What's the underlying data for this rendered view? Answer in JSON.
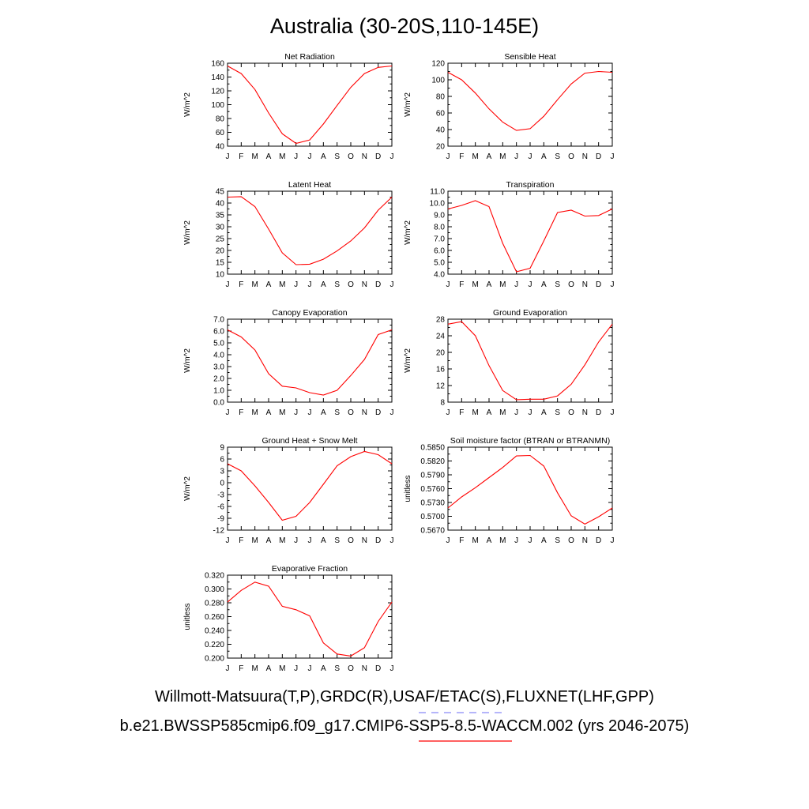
{
  "title": "Australia (30-20S,110-145E)",
  "legend": {
    "obs_label": "Willmott-Matsuura(T,P),GRDC(R),USAF/ETAC(S),FLUXNET(LHF,GPP)",
    "obs_color": "#6b6bf5",
    "model_label": "b.e21.BWSSP585cmip6.f09_g17.CMIP6-SSP5-8.5-WACCM.002 (yrs 2046-2075)",
    "model_color": "#ff0000"
  },
  "series_color": "#ff0000",
  "chart_data": [
    {
      "type": "line",
      "title": "Net Radiation",
      "ylabel": "W/m^2",
      "categories": [
        "J",
        "F",
        "M",
        "A",
        "M",
        "J",
        "J",
        "A",
        "S",
        "O",
        "N",
        "D",
        "J"
      ],
      "values": [
        156,
        145,
        122,
        88,
        58,
        44,
        49,
        72,
        99,
        125,
        145,
        154,
        156
      ],
      "ylim": [
        40,
        160
      ],
      "yticks": [
        "40",
        "60",
        "80",
        "100",
        "120",
        "140",
        "160"
      ]
    },
    {
      "type": "line",
      "title": "Sensible Heat",
      "ylabel": "W/m^2",
      "categories": [
        "J",
        "F",
        "M",
        "A",
        "M",
        "J",
        "J",
        "A",
        "S",
        "O",
        "N",
        "D",
        "J"
      ],
      "values": [
        109,
        100,
        84,
        65,
        49,
        39,
        41,
        56,
        76,
        95,
        108,
        110,
        109
      ],
      "ylim": [
        20,
        120
      ],
      "yticks": [
        "20",
        "40",
        "60",
        "80",
        "100",
        "120"
      ]
    },
    {
      "type": "line",
      "title": "Latent Heat",
      "ylabel": "W/m^2",
      "categories": [
        "J",
        "F",
        "M",
        "A",
        "M",
        "J",
        "J",
        "A",
        "S",
        "O",
        "N",
        "D",
        "J"
      ],
      "values": [
        42.5,
        42.7,
        38.5,
        29,
        19,
        14,
        14.2,
        16.3,
        19.8,
        24,
        29.5,
        37,
        42.5
      ],
      "ylim": [
        10,
        45
      ],
      "yticks": [
        "10",
        "15",
        "20",
        "25",
        "30",
        "35",
        "40",
        "45"
      ]
    },
    {
      "type": "line",
      "title": "Transpiration",
      "ylabel": "W/m^2",
      "categories": [
        "J",
        "F",
        "M",
        "A",
        "M",
        "J",
        "J",
        "A",
        "S",
        "O",
        "N",
        "D",
        "J"
      ],
      "values": [
        9.5,
        9.8,
        10.2,
        9.7,
        6.6,
        4.2,
        4.5,
        6.8,
        9.2,
        9.4,
        8.9,
        8.95,
        9.5
      ],
      "ylim": [
        4.0,
        11.0
      ],
      "yticks": [
        "4.0",
        "5.0",
        "6.0",
        "7.0",
        "8.0",
        "9.0",
        "10.0",
        "11.0"
      ]
    },
    {
      "type": "line",
      "title": "Canopy Evaporation",
      "ylabel": "W/m^2",
      "categories": [
        "J",
        "F",
        "M",
        "A",
        "M",
        "J",
        "J",
        "A",
        "S",
        "O",
        "N",
        "D",
        "J"
      ],
      "values": [
        6.1,
        5.5,
        4.4,
        2.4,
        1.35,
        1.2,
        0.8,
        0.6,
        1.0,
        2.25,
        3.6,
        5.7,
        6.1
      ],
      "ylim": [
        0.0,
        7.0
      ],
      "yticks": [
        "0.0",
        "1.0",
        "2.0",
        "3.0",
        "4.0",
        "5.0",
        "6.0",
        "7.0"
      ]
    },
    {
      "type": "line",
      "title": "Ground Evaporation",
      "ylabel": "W/m^2",
      "categories": [
        "J",
        "F",
        "M",
        "A",
        "M",
        "J",
        "J",
        "A",
        "S",
        "O",
        "N",
        "D",
        "J"
      ],
      "values": [
        26.8,
        27.4,
        24,
        16.8,
        10.8,
        8.6,
        8.7,
        8.7,
        9.5,
        12.3,
        17,
        22.5,
        26.8
      ],
      "ylim": [
        8,
        28
      ],
      "yticks": [
        "8",
        "12",
        "16",
        "20",
        "24",
        "28"
      ]
    },
    {
      "type": "line",
      "title": "Ground Heat + Snow Melt",
      "ylabel": "W/m^2",
      "categories": [
        "J",
        "F",
        "M",
        "A",
        "M",
        "J",
        "J",
        "A",
        "S",
        "O",
        "N",
        "D",
        "J"
      ],
      "values": [
        4.8,
        3,
        -0.8,
        -5,
        -9.5,
        -8.5,
        -5,
        -0.4,
        4.3,
        6.6,
        7.9,
        7.1,
        4.8
      ],
      "ylim": [
        -12,
        9
      ],
      "yticks": [
        "-12",
        "-9",
        "-6",
        "-3",
        "0",
        "3",
        "6",
        "9"
      ]
    },
    {
      "type": "line",
      "title": "Soil moisture factor (BTRAN or BTRANMN)",
      "ylabel": "unitless",
      "categories": [
        "J",
        "F",
        "M",
        "A",
        "M",
        "J",
        "J",
        "A",
        "S",
        "O",
        "N",
        "D",
        "J"
      ],
      "values": [
        0.5718,
        0.5742,
        0.5762,
        0.5784,
        0.5806,
        0.5831,
        0.5832,
        0.5809,
        0.5751,
        0.5701,
        0.5683,
        0.5699,
        0.5718
      ],
      "ylim": [
        0.567,
        0.585
      ],
      "yticks": [
        "0.5670",
        "0.5700",
        "0.5730",
        "0.5760",
        "0.5790",
        "0.5820",
        "0.5850"
      ]
    },
    {
      "type": "line",
      "title": "Evaporative Fraction",
      "ylabel": "unitless",
      "categories": [
        "J",
        "F",
        "M",
        "A",
        "M",
        "J",
        "J",
        "A",
        "S",
        "O",
        "N",
        "D",
        "J"
      ],
      "values": [
        0.281,
        0.298,
        0.31,
        0.304,
        0.275,
        0.27,
        0.261,
        0.222,
        0.206,
        0.203,
        0.215,
        0.253,
        0.281
      ],
      "ylim": [
        0.2,
        0.32
      ],
      "yticks": [
        "0.200",
        "0.220",
        "0.240",
        "0.260",
        "0.280",
        "0.300",
        "0.320"
      ]
    }
  ]
}
